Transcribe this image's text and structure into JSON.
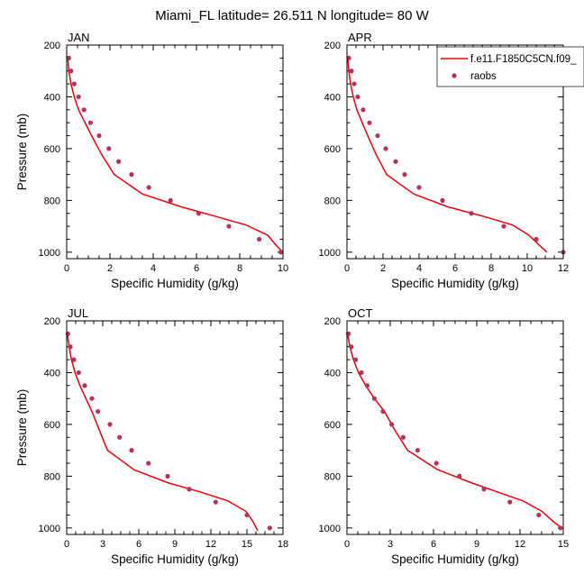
{
  "figure": {
    "title": "Miami_FL  latitude= 26.511 N longitude= 80 W"
  },
  "colors": {
    "model": "#e8000b",
    "raobs": "#b5325a",
    "axis": "#000000"
  },
  "legend": {
    "placement": "top-right of APR panel",
    "entries": [
      {
        "label": "f.e11.F1850C5CN.f09_",
        "style": "line"
      },
      {
        "label": "raobs",
        "style": "marker"
      }
    ]
  },
  "chart_data": [
    {
      "type": "line",
      "panel_label": "JAN",
      "xlabel": "Specific Humidity (g/kg)",
      "ylabel": "Pressure (mb)",
      "xlim": [
        0,
        10
      ],
      "ylim": [
        1025,
        200
      ],
      "y_reversed": true,
      "xticks": [
        0,
        2,
        4,
        6,
        8,
        10
      ],
      "yticks": [
        200,
        400,
        600,
        800,
        1000
      ],
      "grid": false,
      "series": [
        {
          "name": "f.e11.F1850C5CN.f09_",
          "style": "line",
          "x": [
            0.05,
            0.1,
            0.2,
            0.35,
            0.55,
            0.85,
            1.15,
            1.6,
            2.2,
            3.5,
            5.3,
            6.9,
            8.3,
            9.3,
            9.7,
            10.0
          ],
          "y": [
            250,
            300,
            350,
            400,
            450,
            500,
            550,
            620,
            700,
            775,
            825,
            862,
            895,
            935,
            975,
            1000
          ]
        },
        {
          "name": "raobs",
          "style": "marker",
          "x": [
            0.1,
            0.2,
            0.35,
            0.55,
            0.8,
            1.1,
            1.5,
            1.95,
            2.4,
            3.0,
            3.8,
            4.8,
            6.1,
            7.5,
            8.9,
            9.9
          ],
          "y": [
            250,
            300,
            350,
            400,
            450,
            500,
            550,
            600,
            650,
            700,
            750,
            800,
            850,
            900,
            950,
            1000
          ]
        }
      ]
    },
    {
      "type": "line",
      "panel_label": "APR",
      "xlabel": "Specific Humidity (g/kg)",
      "ylabel": "",
      "xlim": [
        0,
        12
      ],
      "ylim": [
        1025,
        200
      ],
      "y_reversed": true,
      "xticks": [
        0,
        2,
        4,
        6,
        8,
        10,
        12
      ],
      "yticks": [
        200,
        400,
        600,
        800,
        1000
      ],
      "grid": false,
      "series": [
        {
          "name": "f.e11.F1850C5CN.f09_",
          "style": "line",
          "x": [
            0.05,
            0.1,
            0.2,
            0.35,
            0.55,
            0.85,
            1.15,
            1.6,
            2.2,
            3.7,
            5.6,
            7.6,
            9.2,
            10.1,
            10.7,
            11.1
          ],
          "y": [
            250,
            300,
            350,
            400,
            450,
            500,
            550,
            620,
            700,
            775,
            825,
            862,
            895,
            935,
            975,
            1000
          ]
        },
        {
          "name": "raobs",
          "style": "marker",
          "x": [
            0.1,
            0.25,
            0.4,
            0.6,
            0.9,
            1.25,
            1.7,
            2.15,
            2.7,
            3.2,
            4.0,
            5.3,
            6.9,
            8.7,
            10.5,
            12.0
          ],
          "y": [
            250,
            300,
            350,
            400,
            450,
            500,
            550,
            600,
            650,
            700,
            750,
            800,
            850,
            900,
            950,
            1000
          ]
        }
      ]
    },
    {
      "type": "line",
      "panel_label": "JUL",
      "xlabel": "Specific Humidity (g/kg)",
      "ylabel": "Pressure (mb)",
      "xlim": [
        0,
        18
      ],
      "ylim": [
        1025,
        200
      ],
      "y_reversed": true,
      "xticks": [
        0,
        3,
        6,
        9,
        12,
        15,
        18
      ],
      "yticks": [
        200,
        400,
        600,
        800,
        1000
      ],
      "grid": false,
      "series": [
        {
          "name": "f.e11.F1850C5CN.f09_",
          "style": "line",
          "x": [
            0.05,
            0.2,
            0.4,
            0.7,
            1.1,
            1.6,
            2.1,
            2.7,
            3.4,
            5.6,
            8.4,
            11.2,
            13.4,
            14.9,
            15.5,
            15.9
          ],
          "y": [
            250,
            300,
            350,
            400,
            450,
            500,
            550,
            620,
            700,
            775,
            825,
            862,
            895,
            935,
            975,
            1010
          ]
        },
        {
          "name": "raobs",
          "style": "marker",
          "x": [
            0.1,
            0.3,
            0.6,
            1.0,
            1.5,
            2.1,
            2.6,
            3.6,
            4.4,
            5.4,
            6.8,
            8.4,
            10.2,
            12.4,
            15.0,
            16.9
          ],
          "y": [
            250,
            300,
            350,
            400,
            450,
            500,
            550,
            600,
            650,
            700,
            750,
            800,
            850,
            900,
            950,
            1000
          ]
        }
      ]
    },
    {
      "type": "line",
      "panel_label": "OCT",
      "xlabel": "Specific Humidity (g/kg)",
      "ylabel": "",
      "xlim": [
        0,
        15
      ],
      "ylim": [
        1025,
        200
      ],
      "y_reversed": true,
      "xticks": [
        0,
        3,
        6,
        9,
        12,
        15
      ],
      "yticks": [
        200,
        400,
        600,
        800,
        1000
      ],
      "grid": false,
      "series": [
        {
          "name": "f.e11.F1850C5CN.f09_",
          "style": "line",
          "x": [
            0.05,
            0.2,
            0.45,
            0.8,
            1.3,
            1.9,
            2.6,
            3.3,
            4.2,
            6.3,
            8.6,
            10.5,
            12.2,
            13.5,
            14.3,
            14.9
          ],
          "y": [
            250,
            300,
            350,
            400,
            450,
            500,
            550,
            620,
            700,
            775,
            825,
            862,
            895,
            935,
            975,
            1000
          ]
        },
        {
          "name": "raobs",
          "style": "marker",
          "x": [
            0.1,
            0.3,
            0.6,
            1.0,
            1.4,
            1.9,
            2.5,
            3.1,
            3.9,
            4.9,
            6.2,
            7.8,
            9.5,
            11.3,
            13.3,
            14.8
          ],
          "y": [
            250,
            300,
            350,
            400,
            450,
            500,
            550,
            600,
            650,
            700,
            750,
            800,
            850,
            900,
            950,
            1000
          ]
        }
      ]
    }
  ]
}
